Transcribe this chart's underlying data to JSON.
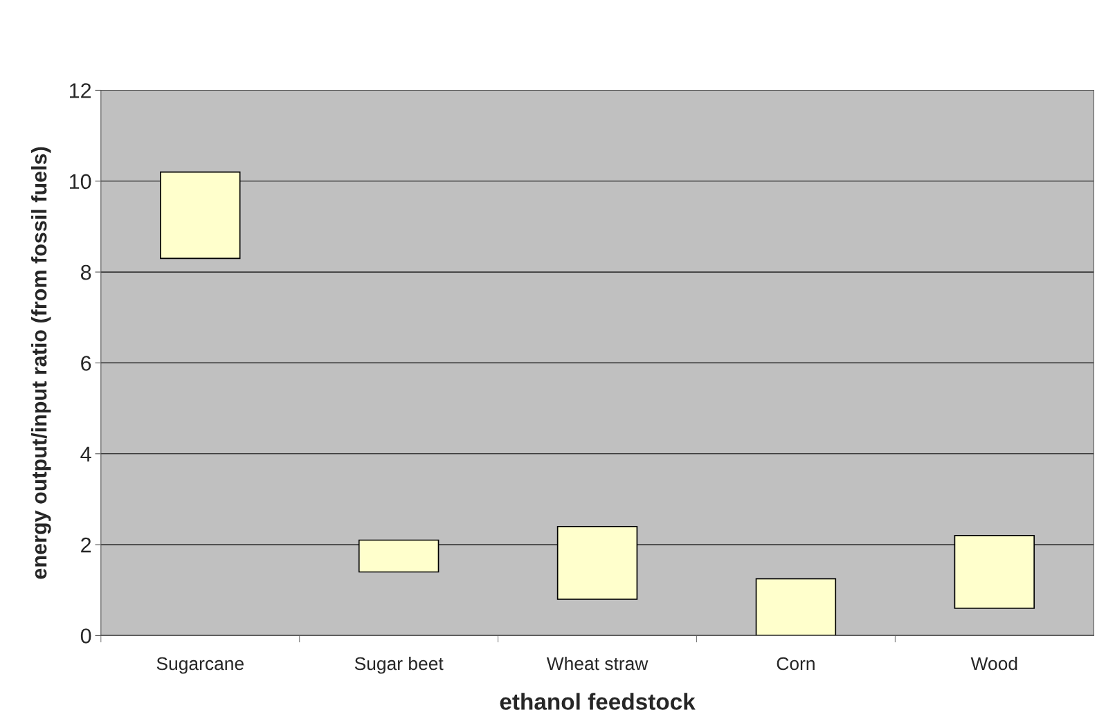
{
  "chart_data": {
    "type": "bar",
    "xlabel": "ethanol feedstock",
    "ylabel": "energy output/input ratio (from fossil fuels)",
    "categories": [
      "Sugarcane",
      "Sugar beet",
      "Wheat straw",
      "Corn",
      "Wood"
    ],
    "base": [
      8.3,
      1.4,
      0.8,
      0,
      0.6
    ],
    "values": [
      1.9,
      0.7,
      1.6,
      1.25,
      1.6
    ],
    "color": "#ffffcc",
    "ylim": [
      0,
      12
    ],
    "yticks": [
      0,
      2,
      4,
      6,
      8,
      10,
      12
    ],
    "grid": "y"
  }
}
